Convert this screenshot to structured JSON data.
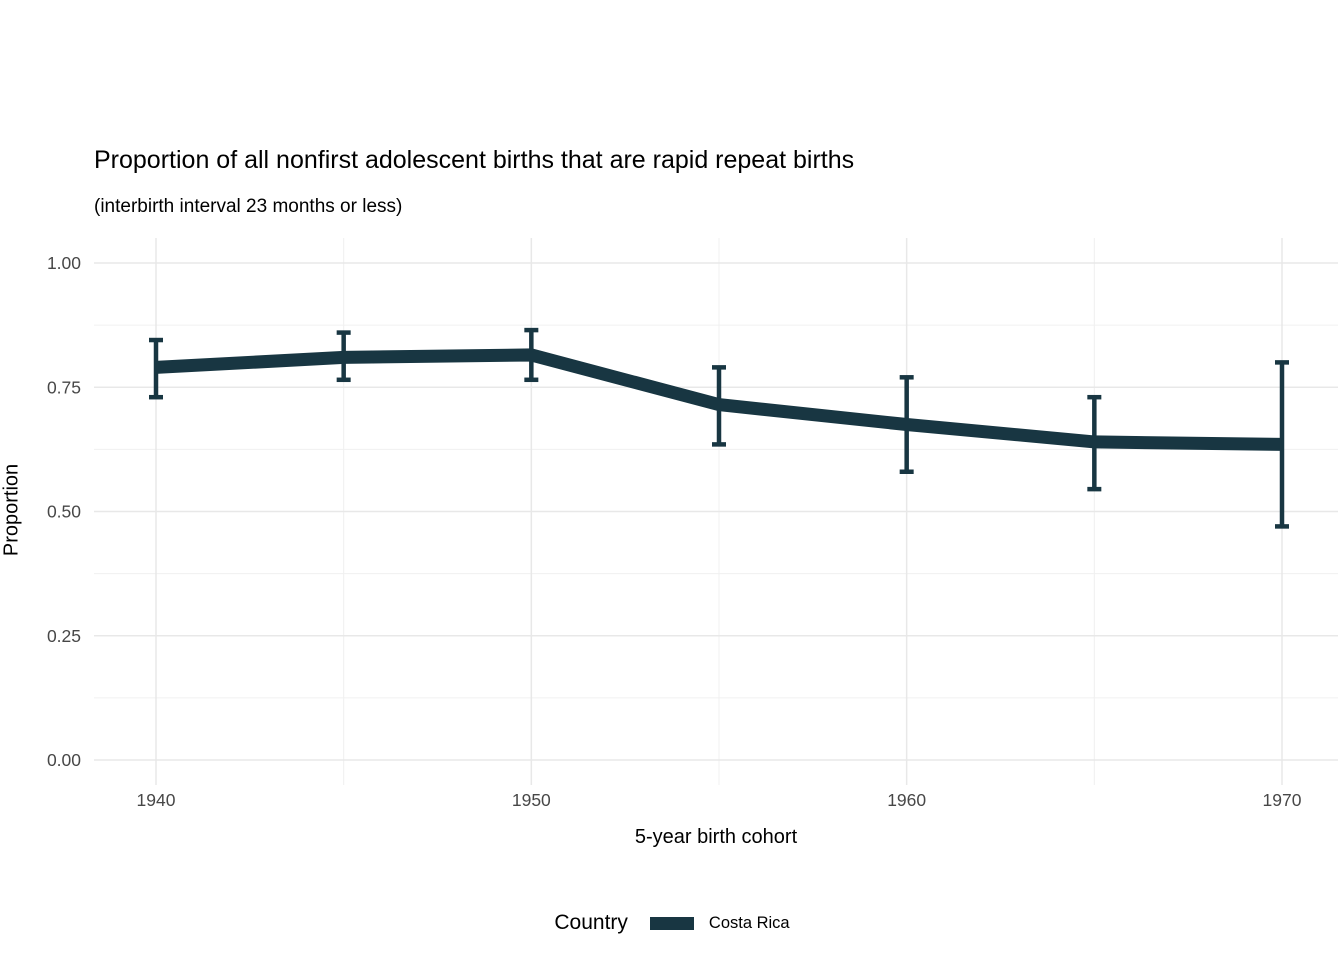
{
  "title": "Proportion of all nonfirst adolescent births that are rapid repeat births",
  "subtitle": "(interbirth interval 23 months or less)",
  "axes": {
    "x_label": "5-year birth cohort",
    "y_label": "Proportion",
    "x_ticks": [
      "1940",
      "1950",
      "1960",
      "1970"
    ],
    "y_ticks": [
      "0.00",
      "0.25",
      "0.50",
      "0.75",
      "1.00"
    ]
  },
  "legend": {
    "title": "Country",
    "entries": [
      {
        "label": "Costa Rica",
        "color": "#183642"
      }
    ]
  },
  "colors": {
    "series": "#183642",
    "grid_major": "#e8e8e8",
    "grid_minor": "#f0f0f0",
    "tick_text": "#474747",
    "background": "#ffffff"
  },
  "chart_data": {
    "type": "line",
    "title": "Proportion of all nonfirst adolescent births that are rapid repeat births",
    "subtitle": "(interbirth interval 23 months or less)",
    "xlabel": "5-year birth cohort",
    "ylabel": "Proportion",
    "xlim": [
      1938.5,
      1971.5
    ],
    "ylim": [
      -0.05,
      1.05
    ],
    "grid": true,
    "legend_position": "bottom",
    "x": [
      1940,
      1945,
      1950,
      1955,
      1960,
      1965,
      1970
    ],
    "x_major_ticks": [
      1940,
      1950,
      1960,
      1970
    ],
    "x_minor_ticks": [
      1945,
      1955,
      1965
    ],
    "y_major_ticks": [
      0,
      0.25,
      0.5,
      0.75,
      1
    ],
    "y_minor_ticks": [
      0.125,
      0.375,
      0.625,
      0.875
    ],
    "series": [
      {
        "name": "Costa Rica",
        "color": "#183642",
        "values": [
          0.79,
          0.81,
          0.815,
          0.715,
          0.675,
          0.64,
          0.635
        ],
        "ci_low": [
          0.73,
          0.765,
          0.765,
          0.635,
          0.58,
          0.545,
          0.47
        ],
        "ci_high": [
          0.845,
          0.86,
          0.865,
          0.79,
          0.77,
          0.73,
          0.8
        ]
      }
    ]
  }
}
